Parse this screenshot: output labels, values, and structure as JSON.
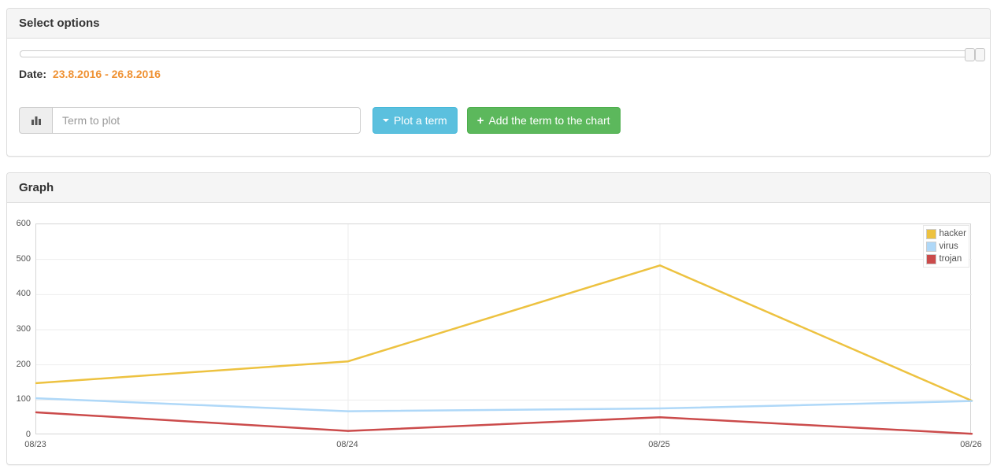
{
  "select_options_panel": {
    "title": "Select options",
    "date_label": "Date:",
    "date_range": "23.8.2016 - 26.8.2016",
    "date_range_color": "#ef9234",
    "term_input_placeholder": "Term to plot",
    "plot_term_button": {
      "label": "Plot a term",
      "bg": "#5bc0de",
      "border": "#46b8da"
    },
    "add_term_button": {
      "label": "Add the term to the chart",
      "bg": "#5cb85c",
      "border": "#4cae4c"
    }
  },
  "graph_panel": {
    "title": "Graph"
  },
  "chart_data": {
    "type": "line",
    "categories": [
      "08/23",
      "08/24",
      "08/25",
      "08/26"
    ],
    "series": [
      {
        "name": "hacker",
        "color": "#edc240",
        "values": [
          148,
          210,
          483,
          98
        ]
      },
      {
        "name": "virus",
        "color": "#afd8f8",
        "values": [
          105,
          68,
          76,
          97
        ]
      },
      {
        "name": "trojan",
        "color": "#cb4b4b",
        "values": [
          65,
          12,
          51,
          4
        ]
      }
    ],
    "title": "",
    "xlabel": "",
    "ylabel": "",
    "ylim": [
      0,
      600
    ],
    "yticks": [
      0,
      100,
      200,
      300,
      400,
      500,
      600
    ],
    "grid": true,
    "legend_position": "top-right",
    "axis_label_color": "#545454",
    "grid_color": "#ededed",
    "border_color": "#d6d6d6"
  }
}
